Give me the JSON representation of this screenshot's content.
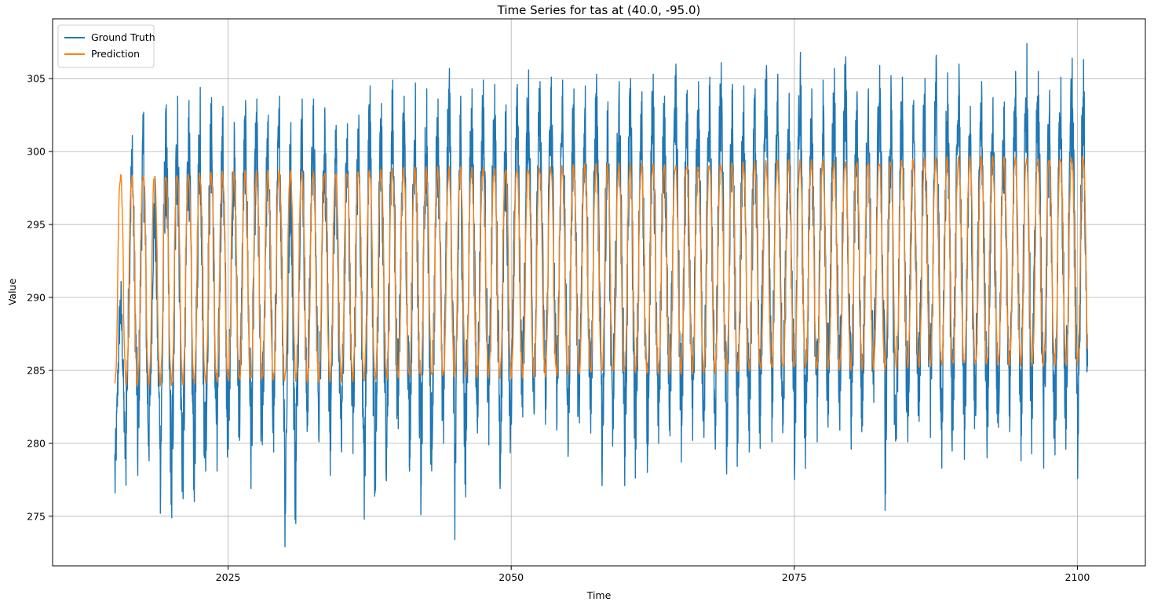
{
  "chart_data": {
    "type": "line",
    "title": "Time Series for tas at (40.0, -95.0)",
    "xlabel": "Time",
    "ylabel": "Value",
    "xlim": [
      2009.5,
      2106.0
    ],
    "ylim": [
      271.6,
      309.1
    ],
    "xticks": [
      2025,
      2050,
      2075,
      2100
    ],
    "yticks": [
      275,
      280,
      285,
      290,
      295,
      300,
      305
    ],
    "grid": true,
    "legend_position": "top-left",
    "x_range": [
      2015.0,
      2100.9
    ],
    "series": [
      {
        "name": "Ground Truth",
        "color": "#1f77b4",
        "annual_min": [
          276.6,
          280.7,
          277.8,
          278.8,
          275.2,
          274.9,
          276.2,
          276.0,
          278.1,
          278.1,
          279.6,
          280.2,
          276.9,
          279.9,
          279.4,
          272.9,
          278.8,
          281.2,
          280.1,
          277.8,
          279.4,
          279.3,
          274.8,
          276.8,
          279.7,
          281.0,
          278.1,
          275.1,
          279.6,
          280.0,
          273.4,
          280.2,
          280.7,
          279.9,
          276.9,
          281.3,
          281.8,
          282.0,
          281.3,
          280.9,
          279.1,
          281.4,
          280.7,
          277.1,
          281.0,
          277.1,
          279.6,
          278.0,
          280.0,
          280.5,
          278.7,
          280.2,
          280.4,
          279.6,
          277.9,
          280.0,
          279.4,
          281.9,
          280.1,
          281.3,
          277.5,
          280.5,
          280.1,
          282.0,
          280.9,
          279.6,
          281.2,
          282.8,
          275.4,
          280.3,
          280.1,
          281.5,
          280.4,
          278.3,
          280.9,
          278.9,
          281.9,
          279.0,
          281.1,
          280.8,
          278.8,
          281.7,
          278.3,
          279.2,
          281.0,
          277.6
        ],
        "annual_max": [
          291.1,
          301.1,
          302.7,
          298.3,
          303.2,
          303.8,
          303.5,
          304.4,
          303.7,
          303.1,
          302.0,
          303.5,
          303.6,
          302.5,
          303.8,
          302.0,
          303.6,
          303.6,
          303.0,
          301.8,
          301.9,
          302.5,
          304.5,
          303.3,
          304.9,
          303.8,
          304.7,
          304.3,
          303.6,
          305.7,
          303.8,
          304.3,
          304.9,
          304.6,
          303.2,
          304.6,
          305.6,
          304.8,
          305.1,
          304.9,
          304.3,
          304.5,
          305.3,
          303.4,
          304.8,
          305.0,
          304.1,
          305.3,
          303.8,
          306.0,
          304.2,
          304.8,
          305.1,
          306.1,
          304.6,
          304.5,
          304.3,
          305.9,
          305.3,
          304.0,
          306.8,
          304.3,
          304.9,
          305.7,
          306.5,
          304.1,
          304.3,
          305.9,
          305.2,
          305.1,
          303.5,
          305.0,
          306.6,
          305.4,
          306.0,
          303.1,
          304.8,
          303.7,
          303.4,
          305.5,
          307.4,
          305.5,
          304.2,
          305.1,
          306.4,
          306.3
        ]
      },
      {
        "name": "Prediction",
        "color": "#ff7f0e",
        "trough_start": 284.1,
        "trough_end": 285.6,
        "peak_start": 298.3,
        "peak_end": 299.6
      }
    ]
  }
}
